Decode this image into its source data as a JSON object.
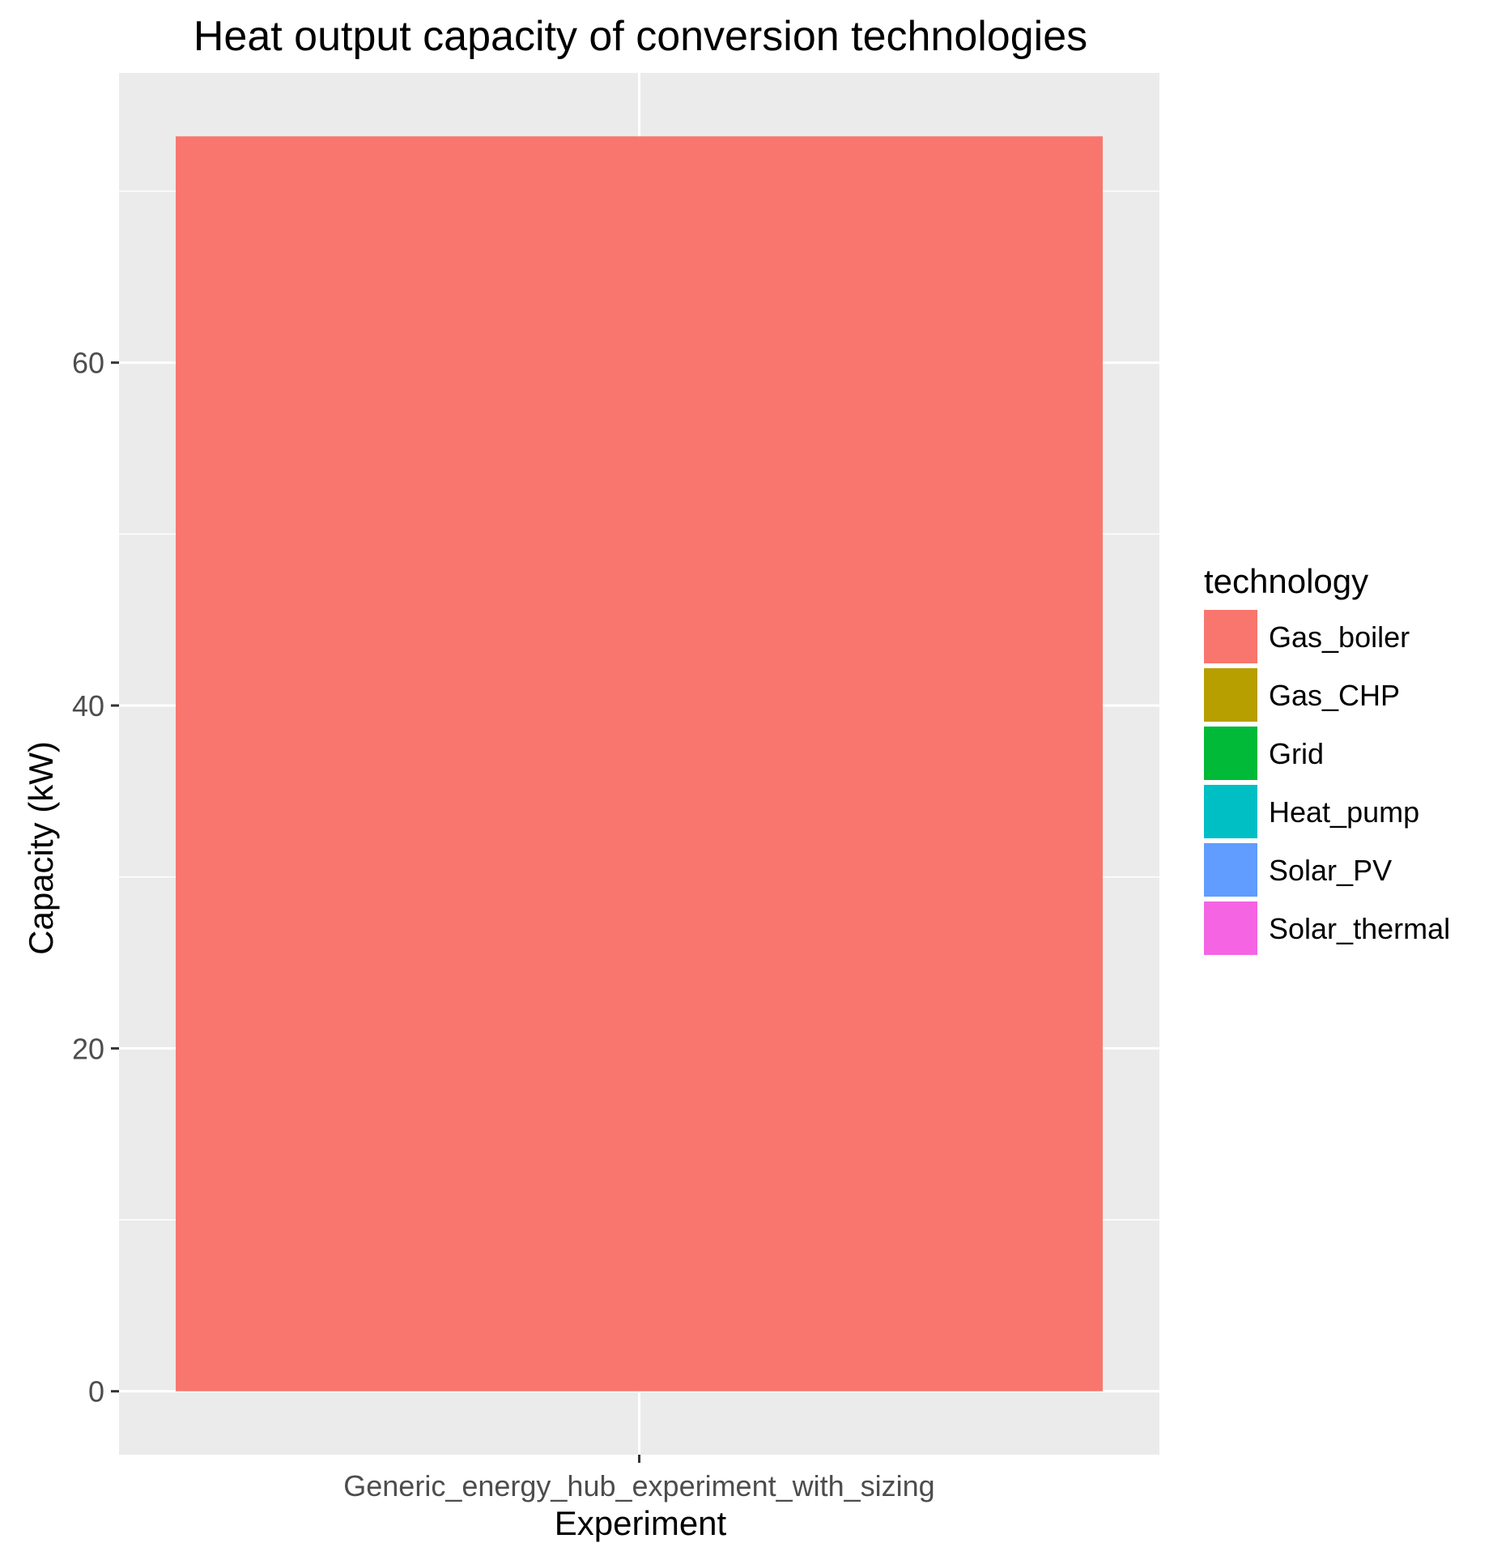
{
  "chart_data": {
    "type": "bar",
    "title": "Heat output capacity of conversion technologies",
    "xlabel": "Experiment",
    "ylabel": "Capacity (kW)",
    "categories": [
      "Generic_energy_hub_experiment_with_sizing"
    ],
    "series": [
      {
        "name": "Gas_boiler",
        "values": [
          73.2
        ],
        "color": "#F8766D"
      },
      {
        "name": "Gas_CHP",
        "values": [
          0
        ],
        "color": "#B79F00"
      },
      {
        "name": "Grid",
        "values": [
          0
        ],
        "color": "#00BA38"
      },
      {
        "name": "Heat_pump",
        "values": [
          0
        ],
        "color": "#00BFC4"
      },
      {
        "name": "Solar_PV",
        "values": [
          0
        ],
        "color": "#619CFF"
      },
      {
        "name": "Solar_thermal",
        "values": [
          0
        ],
        "color": "#F564E3"
      }
    ],
    "stacked": true,
    "ylim": [
      -3.7,
      76.9
    ],
    "yticks": [
      0,
      20,
      40,
      60
    ],
    "ytick_labels": [
      "0",
      "20",
      "40",
      "60"
    ],
    "grid": true,
    "legend_title": "technology",
    "legend_position": "right",
    "panel_background": "#EBEBEB",
    "grid_color": "#FFFFFF"
  }
}
